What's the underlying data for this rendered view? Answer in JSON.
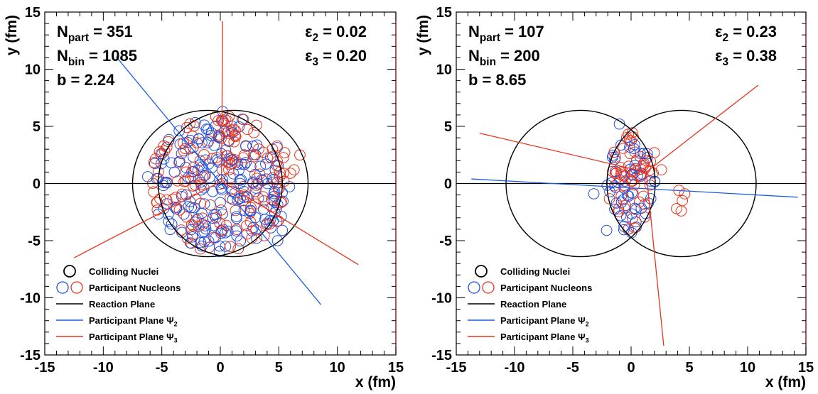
{
  "chart_data": [
    {
      "type": "scatter",
      "xlabel": "x (fm)",
      "ylabel": "y (fm)",
      "xlim": [
        -15,
        15
      ],
      "ylim": [
        -15,
        15
      ],
      "xticks": [
        "-15",
        "-10",
        "-5",
        "0",
        "5",
        "10",
        "15"
      ],
      "yticks": [
        "-15",
        "-10",
        "-5",
        "0",
        "5",
        "10",
        "15"
      ],
      "grid": false,
      "info_left": [
        {
          "main": "N",
          "sub": "part",
          "rest": " = 351"
        },
        {
          "main": "N",
          "sub": "bin",
          "rest": " = 1085"
        },
        {
          "main": "b = 2.24",
          "sub": "",
          "rest": ""
        }
      ],
      "info_right": [
        {
          "main": "ε",
          "sub": "2",
          "rest": " = 0.02"
        },
        {
          "main": "ε",
          "sub": "3",
          "rest": " = 0.20"
        }
      ],
      "legend": {
        "placement": "bottom-left",
        "entries": [
          {
            "label": "Colliding Nuclei",
            "sub": "",
            "style": "circle-black"
          },
          {
            "label": "Participant Nucleons",
            "sub": "",
            "style": "circles-blue-red"
          },
          {
            "label": "Reaction Plane",
            "sub": "",
            "style": "line-black"
          },
          {
            "label": "Participant Plane Ψ",
            "sub": "2",
            "style": "line-blue"
          },
          {
            "label": "Participant Plane Ψ",
            "sub": "3",
            "style": "line-red"
          }
        ]
      },
      "nuclei": [
        {
          "cx": -1.1,
          "cy": 0,
          "r": 6.4
        },
        {
          "cx": 1.1,
          "cy": 0,
          "r": 6.4
        }
      ],
      "reaction_plane": [
        [
          -15,
          0
        ],
        [
          15,
          0
        ]
      ],
      "plane_psi2": [
        [
          -8.9,
          11.1
        ],
        [
          8.6,
          -10.6
        ]
      ],
      "plane_psi3_segments": [
        [
          [
            0.1,
            0.2
          ],
          [
            0.2,
            14.2
          ]
        ],
        [
          [
            0.1,
            0.2
          ],
          [
            -12.5,
            -6.5
          ]
        ],
        [
          [
            0.1,
            0.2
          ],
          [
            11.8,
            -7.1
          ]
        ]
      ],
      "participants": {
        "count": 351,
        "radius": 0.45,
        "cloud": {
          "type": "disk",
          "cx": 0,
          "cy": 0,
          "rx": 6.0,
          "ry": 6.0
        },
        "seed": 11,
        "extra_red": [
          [
            6.8,
            2.5
          ],
          [
            6.3,
            1.2
          ],
          [
            6.0,
            0.9
          ],
          [
            5.4,
            0.9
          ],
          [
            5.5,
            2.7
          ]
        ],
        "extra_blue": [
          [
            5.3,
            -4.1
          ],
          [
            4.9,
            -5.0
          ],
          [
            -6.2,
            0.6
          ],
          [
            0.2,
            6.3
          ]
        ]
      },
      "colors": {
        "blue": "#1f4fe0",
        "red": "#e8331c",
        "black": "#000000",
        "psi2": "#1a5ce6",
        "psi3": "#e8331c"
      }
    },
    {
      "type": "scatter",
      "xlabel": "x (fm)",
      "ylabel": "y (fm)",
      "xlim": [
        -15,
        15
      ],
      "ylim": [
        -15,
        15
      ],
      "xticks": [
        "-15",
        "-10",
        "-5",
        "0",
        "5",
        "10",
        "15"
      ],
      "yticks": [
        "-15",
        "-10",
        "-5",
        "0",
        "5",
        "10",
        "15"
      ],
      "grid": false,
      "info_left": [
        {
          "main": "N",
          "sub": "part",
          "rest": " = 107"
        },
        {
          "main": "N",
          "sub": "bin",
          "rest": " = 200"
        },
        {
          "main": "b = 8.65",
          "sub": "",
          "rest": ""
        }
      ],
      "info_right": [
        {
          "main": "ε",
          "sub": "2",
          "rest": " = 0.23"
        },
        {
          "main": "ε",
          "sub": "3",
          "rest": " = 0.38"
        }
      ],
      "legend": {
        "placement": "bottom-left",
        "entries": [
          {
            "label": "Colliding Nuclei",
            "sub": "",
            "style": "circle-black"
          },
          {
            "label": "Participant Nucleons",
            "sub": "",
            "style": "circles-blue-red"
          },
          {
            "label": "Reaction Plane",
            "sub": "",
            "style": "line-black"
          },
          {
            "label": "Participant Plane Ψ",
            "sub": "2",
            "style": "line-blue"
          },
          {
            "label": "Participant Plane Ψ",
            "sub": "3",
            "style": "line-red"
          }
        ]
      },
      "nuclei": [
        {
          "cx": -4.33,
          "cy": 0,
          "r": 6.4
        },
        {
          "cx": 4.33,
          "cy": 0,
          "r": 6.4
        }
      ],
      "reaction_plane": [
        [
          -15,
          0
        ],
        [
          15,
          0
        ]
      ],
      "plane_psi2": [
        [
          -13.7,
          0.4
        ],
        [
          14.3,
          -1.2
        ]
      ],
      "plane_psi3_segments": [
        [
          [
            1.3,
            1.0
          ],
          [
            10.9,
            8.6
          ]
        ],
        [
          [
            1.3,
            1.0
          ],
          [
            -13.0,
            4.4
          ]
        ],
        [
          [
            1.3,
            1.0
          ],
          [
            2.8,
            -14.2
          ]
        ]
      ],
      "participants": {
        "count": 107,
        "radius": 0.45,
        "cloud": {
          "type": "lens",
          "cx": 0,
          "cy": 0,
          "rx": 2.2,
          "ry": 4.9
        },
        "seed": 29,
        "extra_red": [
          [
            4.1,
            -0.6
          ],
          [
            4.4,
            -1.5
          ],
          [
            3.9,
            -2.2
          ],
          [
            4.3,
            -2.4
          ],
          [
            4.6,
            -0.9
          ],
          [
            2.6,
            1.2
          ],
          [
            2.0,
            2.7
          ]
        ],
        "extra_blue": [
          [
            -1.0,
            5.2
          ],
          [
            -1.6,
            2.3
          ],
          [
            -3.2,
            -0.9
          ],
          [
            -2.1,
            -4.1
          ]
        ]
      },
      "colors": {
        "blue": "#1f4fe0",
        "red": "#e8331c",
        "black": "#000000",
        "psi2": "#1a5ce6",
        "psi3": "#e8331c"
      }
    }
  ]
}
